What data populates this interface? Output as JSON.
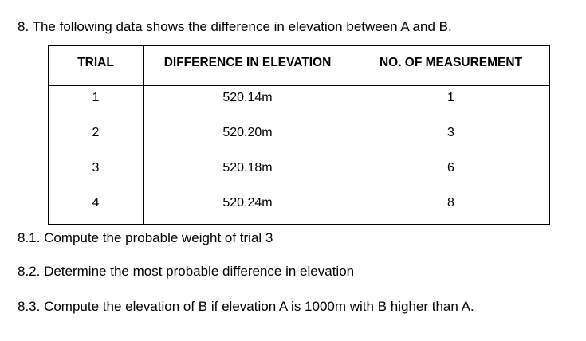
{
  "question": {
    "text": "8. The following data shows the difference in elevation between A and B."
  },
  "table": {
    "headers": [
      "TRIAL",
      "DIFFERENCE IN ELEVATION",
      "NO. OF MEASUREMENT"
    ],
    "rows": [
      [
        "1",
        "520.14m",
        "1"
      ],
      [
        "2",
        "520.20m",
        "3"
      ],
      [
        "3",
        "520.18m",
        "6"
      ],
      [
        "4",
        "520.24m",
        "8"
      ]
    ]
  },
  "subquestions": [
    "8.1. Compute the probable weight of trial 3",
    "8.2. Determine the most probable difference in elevation",
    "8.3. Compute the elevation of B if elevation A is 1000m with B higher than A."
  ]
}
